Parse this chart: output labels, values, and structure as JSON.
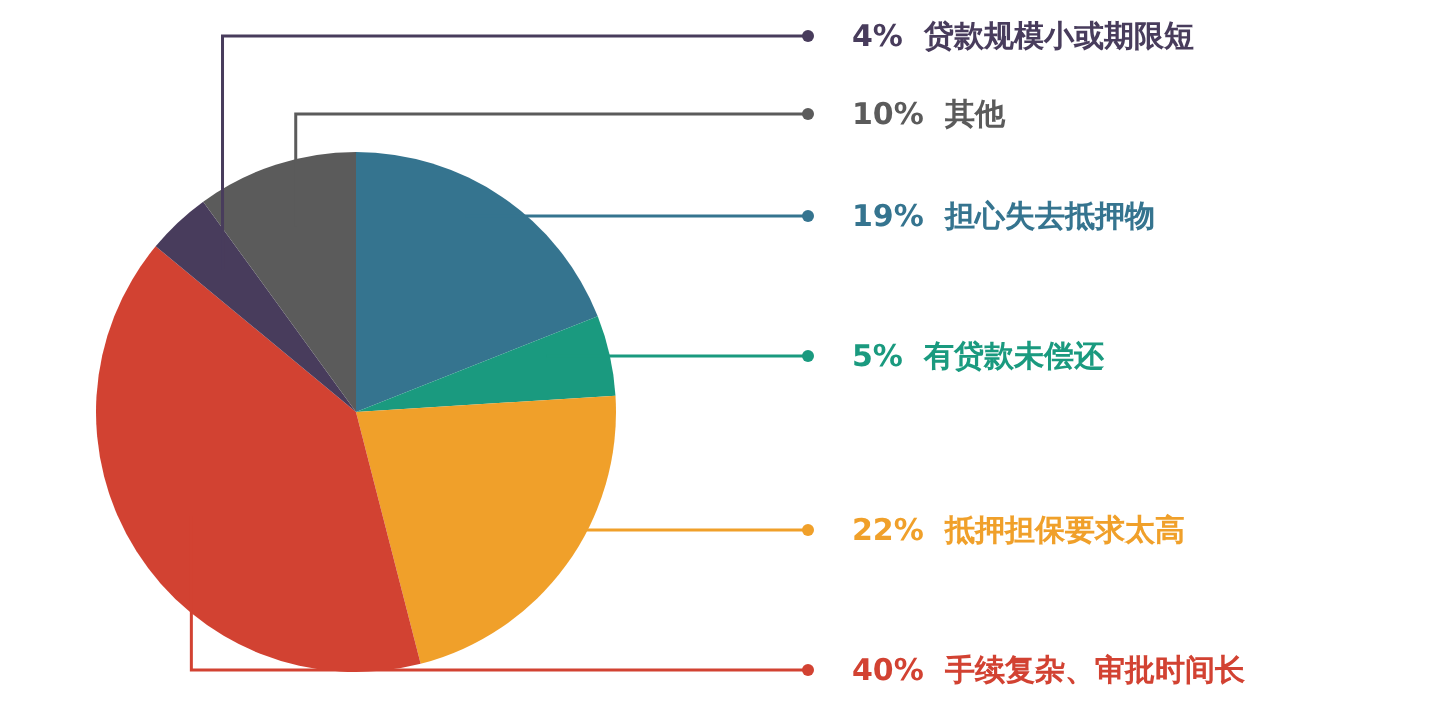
{
  "chart_data": {
    "type": "pie",
    "categories": [
      "担心失去抵押物",
      "有贷款未偿还",
      "抵押担保要求太高",
      "手续复杂、审批时间长",
      "贷款规模小或期限短",
      "其他"
    ],
    "values": [
      19,
      5,
      22,
      40,
      4,
      10
    ],
    "value_labels": [
      "19%",
      "5%",
      "22%",
      "40%",
      "4%",
      "10%"
    ],
    "colors": [
      "#35748f",
      "#1a9a7f",
      "#f0a02a",
      "#d24232",
      "#483c5c",
      "#5b5b5b"
    ],
    "legend": "right"
  }
}
